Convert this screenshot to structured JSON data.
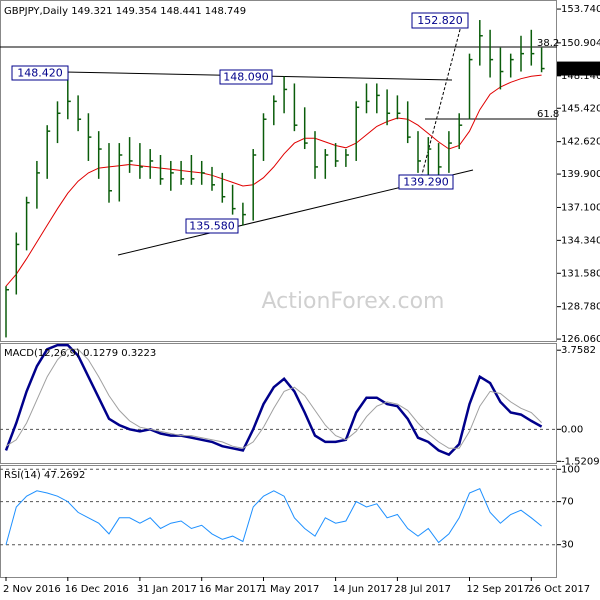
{
  "chart_data": [
    {
      "type": "ohlc",
      "title": "GBPJPY,Daily",
      "subtitle": "149.321 149.354 148.441 148.749",
      "watermark": "ActionForex.com",
      "annotations": [
        "152.820",
        "148.420",
        "148.090",
        "135.580",
        "139.290",
        "38.2",
        "61.8"
      ],
      "color": "#0a5c0a",
      "categories": [
        "2 Nov 2016",
        null,
        null,
        null,
        null,
        null,
        "16 Dec 2016",
        null,
        null,
        null,
        null,
        null,
        null,
        "31 Jan 2017",
        null,
        null,
        null,
        null,
        null,
        "16 Mar 2017",
        null,
        null,
        null,
        null,
        null,
        "1 May 2017",
        null,
        null,
        null,
        null,
        null,
        null,
        "14 Jun 2017",
        null,
        null,
        null,
        null,
        null,
        "28 Jul 2017",
        null,
        null,
        null,
        null,
        null,
        null,
        "12 Sep 2017",
        null,
        null,
        null,
        null,
        null,
        "26 Oct 2017",
        null
      ],
      "high": [
        130.5,
        135.0,
        138.0,
        141.0,
        144.0,
        146.0,
        148.42,
        146.5,
        145.0,
        143.5,
        142.5,
        142.5,
        143.0,
        142.5,
        142.0,
        141.5,
        141.0,
        141.0,
        141.5,
        141.0,
        140.5,
        140.0,
        139.0,
        137.5,
        142.0,
        145.0,
        146.5,
        148.09,
        147.5,
        145.5,
        143.5,
        142.0,
        142.5,
        142.0,
        146.0,
        147.5,
        147.5,
        147.0,
        146.5,
        146.0,
        143.5,
        143.0,
        142.5,
        143.5,
        145.0,
        150.0,
        152.82,
        152.0,
        150.5,
        150.0,
        151.5,
        152.0,
        150.5
      ],
      "low": [
        126.2,
        129.8,
        133.5,
        137.0,
        139.5,
        142.5,
        144.5,
        143.5,
        141.0,
        139.5,
        137.5,
        137.6,
        140.0,
        139.5,
        139.5,
        139.0,
        138.5,
        139.0,
        139.0,
        139.0,
        138.5,
        137.5,
        136.5,
        135.58,
        136.0,
        141.0,
        144.0,
        145.0,
        143.5,
        142.0,
        139.5,
        139.5,
        140.5,
        140.5,
        141.0,
        145.0,
        145.0,
        144.0,
        144.5,
        142.5,
        140.0,
        139.29,
        139.5,
        140.0,
        142.0,
        144.5,
        149.0,
        148.0,
        147.0,
        148.0,
        148.5,
        149.0,
        148.44
      ],
      "close": [
        130.2,
        134.0,
        137.5,
        140.0,
        143.5,
        145.0,
        146.0,
        144.5,
        143.0,
        142.0,
        138.5,
        141.5,
        141.0,
        140.5,
        141.0,
        139.5,
        140.0,
        139.5,
        139.5,
        140.0,
        139.0,
        138.0,
        137.0,
        136.5,
        141.5,
        144.5,
        146.0,
        147.0,
        144.0,
        142.5,
        140.5,
        141.5,
        141.0,
        141.5,
        145.5,
        146.0,
        146.5,
        145.0,
        145.0,
        143.0,
        141.0,
        142.0,
        140.5,
        142.5,
        144.0,
        149.5,
        151.5,
        149.5,
        148.5,
        149.5,
        150.0,
        150.0,
        148.749
      ],
      "ma": {
        "color": "#e00000",
        "values": [
          130.5,
          131.5,
          132.8,
          134.2,
          135.6,
          137.0,
          138.3,
          139.3,
          140.0,
          140.4,
          140.5,
          140.6,
          140.7,
          140.6,
          140.5,
          140.4,
          140.3,
          140.2,
          140.1,
          140.0,
          139.8,
          139.5,
          139.2,
          138.9,
          139.0,
          139.6,
          140.5,
          141.6,
          142.5,
          142.9,
          142.9,
          142.6,
          142.3,
          142.1,
          142.5,
          143.2,
          143.9,
          144.3,
          144.6,
          144.5,
          144.0,
          143.3,
          142.6,
          142.0,
          142.3,
          143.5,
          145.3,
          146.6,
          147.2,
          147.6,
          147.9,
          148.1,
          148.2
        ]
      },
      "ylim": [
        125.9,
        154.5
      ],
      "yticks": [
        {
          "value": 153.74,
          "label": "153.740"
        },
        150.904,
        {
          "value": 148.14,
          "label": "148.140"
        },
        {
          "value": 145.42,
          "label": "145.420"
        },
        {
          "value": 142.62,
          "label": "142.620"
        },
        {
          "value": 139.9,
          "label": "139.900"
        },
        {
          "value": 137.1,
          "label": "137.100"
        },
        {
          "value": 134.34,
          "label": "134.340"
        },
        {
          "value": 131.58,
          "label": "131.580"
        },
        {
          "value": 128.78,
          "label": "128.780"
        },
        {
          "value": 126.06,
          "label": "126.060"
        }
      ],
      "grid": false
    },
    {
      "type": "line",
      "title": "MACD(12,26,9) 0.1279 0.3223",
      "series": [
        {
          "color": "#00008b",
          "width": 2.5,
          "values": [
            -1.0,
            0.3,
            1.8,
            3.0,
            3.8,
            4.0,
            4.0,
            3.5,
            2.5,
            1.5,
            0.5,
            0.2,
            0.0,
            -0.1,
            0.0,
            -0.2,
            -0.3,
            -0.3,
            -0.4,
            -0.5,
            -0.6,
            -0.8,
            -0.9,
            -1.0,
            0.0,
            1.2,
            2.0,
            2.4,
            1.8,
            0.8,
            -0.3,
            -0.6,
            -0.6,
            -0.5,
            0.8,
            1.5,
            1.5,
            1.2,
            1.1,
            0.5,
            -0.4,
            -0.6,
            -1.0,
            -1.2,
            -0.7,
            1.2,
            2.5,
            2.2,
            1.3,
            0.8,
            0.7,
            0.4,
            0.13
          ]
        },
        {
          "color": "#a0a0a0",
          "width": 1,
          "values": [
            -0.8,
            -0.5,
            0.3,
            1.4,
            2.5,
            3.3,
            3.8,
            3.8,
            3.3,
            2.5,
            1.6,
            0.9,
            0.4,
            0.1,
            0.0,
            -0.1,
            -0.2,
            -0.3,
            -0.3,
            -0.4,
            -0.5,
            -0.6,
            -0.8,
            -0.9,
            -0.6,
            0.1,
            1.0,
            1.8,
            2.0,
            1.6,
            0.9,
            0.2,
            -0.3,
            -0.5,
            -0.1,
            0.6,
            1.1,
            1.3,
            1.2,
            0.9,
            0.3,
            -0.2,
            -0.6,
            -0.9,
            -0.9,
            -0.1,
            1.1,
            1.8,
            1.7,
            1.3,
            1.0,
            0.8,
            0.32
          ]
        }
      ],
      "ylim": [
        -1.6,
        4.1
      ],
      "yticks": [
        3.7582,
        {
          "value": 0,
          "label": "0.00"
        },
        -1.5209
      ],
      "grid": false,
      "zero_line": true
    },
    {
      "type": "line",
      "title": "RSI(14) 47.2692",
      "series": [
        {
          "color": "#1e90ff",
          "width": 1,
          "values": [
            30,
            65,
            75,
            80,
            78,
            75,
            70,
            60,
            55,
            50,
            40,
            55,
            55,
            50,
            55,
            45,
            50,
            52,
            45,
            48,
            40,
            35,
            38,
            33,
            65,
            75,
            80,
            75,
            55,
            45,
            38,
            55,
            50,
            52,
            70,
            65,
            68,
            55,
            58,
            45,
            38,
            45,
            32,
            40,
            55,
            78,
            82,
            60,
            50,
            58,
            62,
            55,
            47.27
          ]
        }
      ],
      "ylim": [
        0,
        104
      ],
      "yticks": [
        100,
        70,
        30
      ],
      "grid": true
    }
  ]
}
